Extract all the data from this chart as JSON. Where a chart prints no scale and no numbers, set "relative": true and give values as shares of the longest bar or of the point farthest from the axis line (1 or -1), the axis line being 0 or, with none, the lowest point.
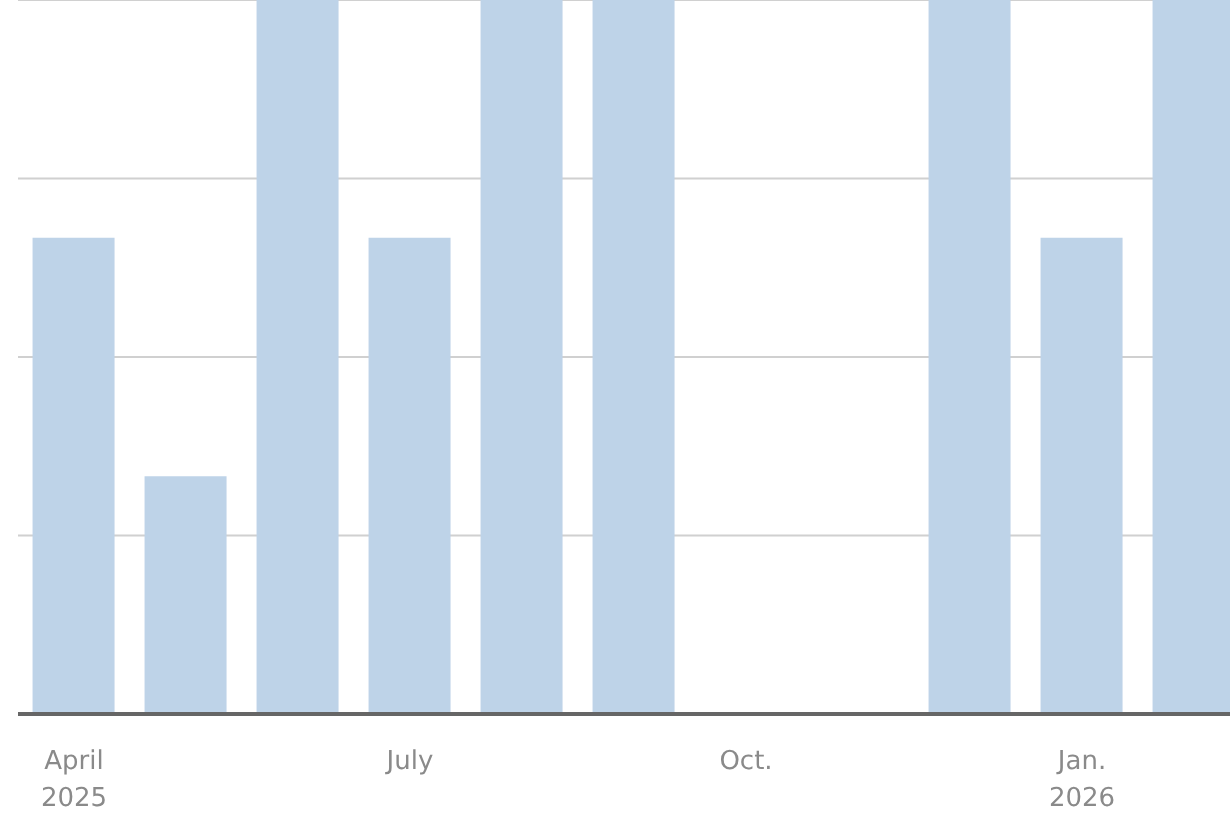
{
  "chart_data": {
    "type": "bar",
    "relative": true,
    "grid": "y",
    "color": "#bed3e8",
    "categories": [
      "April\n2025",
      null,
      null,
      "July",
      null,
      null,
      "Oct.",
      null,
      null,
      "Jan.\n2026",
      null
    ],
    "values": [
      0.667,
      0.333,
      1,
      0.667,
      1,
      1,
      0,
      0,
      1,
      0.667,
      1
    ]
  }
}
